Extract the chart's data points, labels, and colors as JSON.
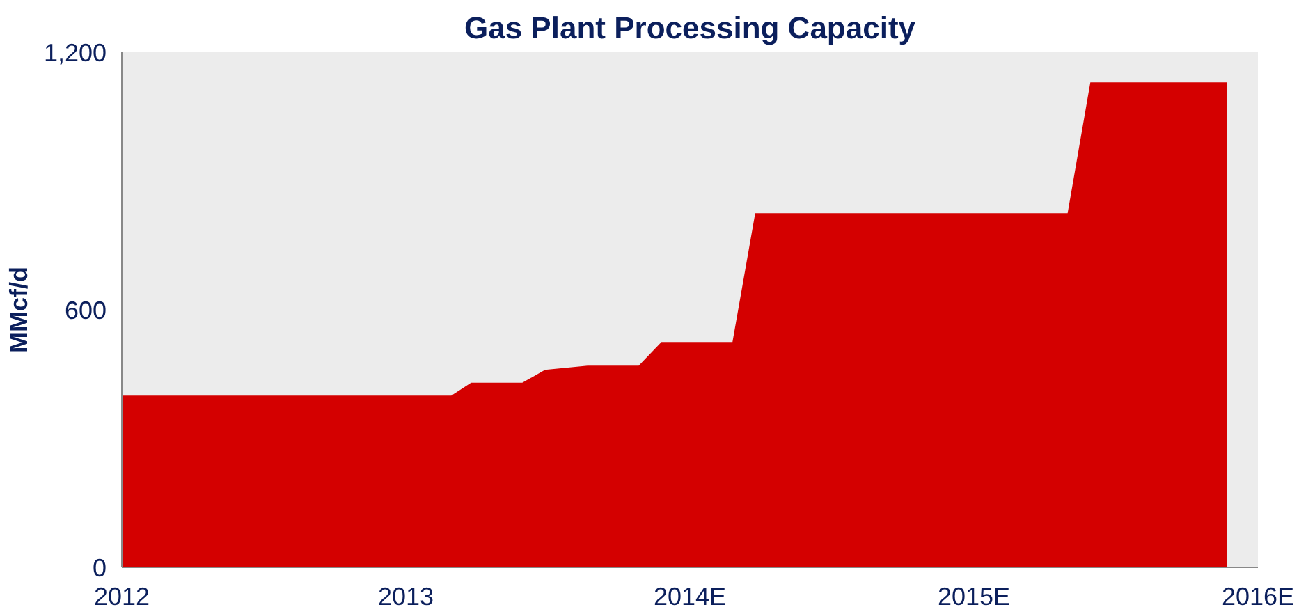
{
  "chart_data": {
    "type": "area",
    "title": "Gas Plant Processing Capacity",
    "ylabel": "MMcf/d",
    "x": [
      2012.0,
      2013.16,
      2013.23,
      2013.41,
      2013.49,
      2013.64,
      2013.82,
      2013.9,
      2014.15,
      2014.23,
      2015.33,
      2015.41,
      2015.89
    ],
    "series": [
      {
        "color": "#d40000",
        "values": [
          400,
          400,
          430,
          430,
          460,
          470,
          470,
          525,
          525,
          825,
          825,
          1130,
          1130
        ]
      }
    ],
    "xlim": [
      2012,
      2016
    ],
    "xticks": [
      {
        "value": 2012,
        "label": "2012"
      },
      {
        "value": 2013,
        "label": "2013"
      },
      {
        "value": 2014,
        "label": "2014E"
      },
      {
        "value": 2015,
        "label": "2015E"
      },
      {
        "value": 2016,
        "label": "2016E"
      }
    ],
    "ylim": [
      0,
      1200
    ],
    "yticks": [
      {
        "value": 0,
        "label": "0"
      },
      {
        "value": 600,
        "label": "600"
      },
      {
        "value": 1200,
        "label": "1,200"
      }
    ],
    "grid": false
  }
}
